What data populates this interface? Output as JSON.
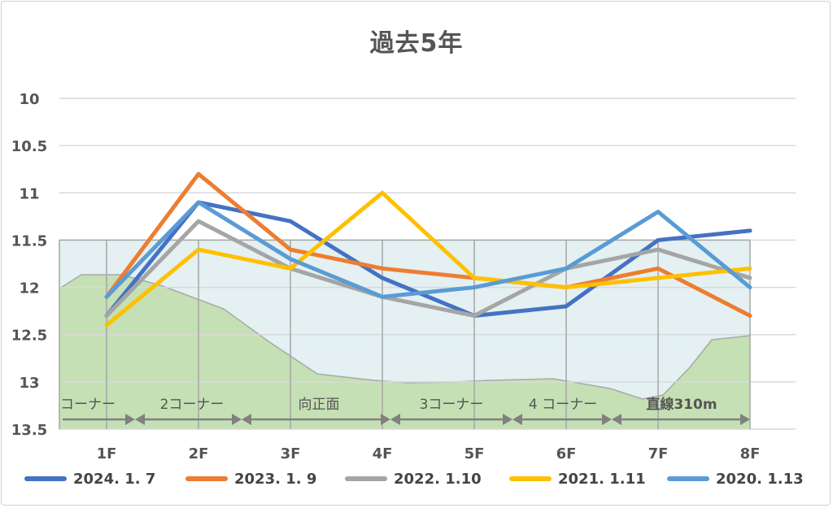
{
  "chart_data": {
    "type": "line",
    "title": "過去5年",
    "xlabel": "",
    "ylabel": "",
    "categories": [
      "1F",
      "2F",
      "3F",
      "4F",
      "5F",
      "6F",
      "7F",
      "8F"
    ],
    "y_inverted": true,
    "ylim": [
      10,
      13.5
    ],
    "y_ticks": [
      "10",
      "10.5",
      "11",
      "11.5",
      "12",
      "12.5",
      "13",
      "13.5"
    ],
    "grid": true,
    "legend_position": "bottom",
    "series": [
      {
        "name": "2024. 1. 7",
        "color": "#4472c4",
        "values": [
          12.3,
          11.1,
          11.3,
          11.9,
          12.3,
          12.2,
          11.5,
          11.4
        ]
      },
      {
        "name": "2023. 1. 9",
        "color": "#ed7d31",
        "values": [
          12.1,
          10.8,
          11.6,
          11.8,
          11.9,
          12.0,
          11.8,
          12.3
        ]
      },
      {
        "name": "2022. 1.10",
        "color": "#a5a5a5",
        "values": [
          12.3,
          11.3,
          11.8,
          12.1,
          12.3,
          11.8,
          11.6,
          11.9
        ]
      },
      {
        "name": "2021. 1.11",
        "color": "#ffc000",
        "values": [
          12.4,
          11.6,
          11.8,
          11.0,
          11.9,
          12.0,
          11.9,
          11.8
        ]
      },
      {
        "name": "2020. 1.13",
        "color": "#5b9bd5",
        "values": [
          12.1,
          11.1,
          11.7,
          12.1,
          12.0,
          11.8,
          11.2,
          12.0
        ]
      }
    ],
    "course_sections": [
      "コーナー",
      "2コーナー",
      "向正面",
      "3コーナー",
      "4 コーナー",
      "直線310m"
    ],
    "colors": {
      "terrain_fill": "#c5e0b4",
      "terrain_stroke": "#a9a9a9",
      "band_fill": "#e4f0f1",
      "gridline": "#d9d9d9",
      "arrow": "#808080"
    }
  }
}
